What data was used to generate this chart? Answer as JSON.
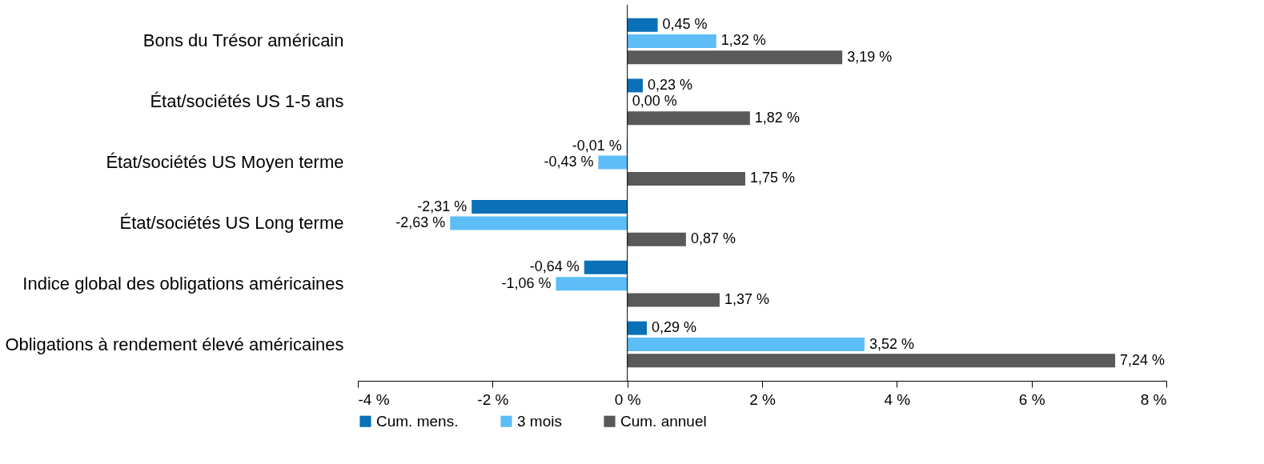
{
  "chart_data": {
    "type": "bar",
    "orientation": "horizontal",
    "categories": [
      "Bons du Trésor américain",
      "État/sociétés US 1-5 ans",
      "État/sociétés US Moyen terme",
      "État/sociétés US Long terme",
      "Indice global des obligations américaines",
      "Obligations à rendement élevé américaines"
    ],
    "series": [
      {
        "name": "Cum. mens.",
        "color": "#0a70b8",
        "values": [
          0.45,
          0.23,
          -0.01,
          -2.31,
          -0.64,
          0.29
        ],
        "value_labels": [
          "0,45 %",
          "0,23 %",
          "-0,01 %",
          "-2,31 %",
          "-0,64 %",
          "0,29 %"
        ]
      },
      {
        "name": "3 mois",
        "color": "#5cbdf7",
        "values": [
          1.32,
          0.0,
          -0.43,
          -2.63,
          -1.06,
          3.52
        ],
        "value_labels": [
          "1,32 %",
          "0,00 %",
          "-0,43 %",
          "-2,63 %",
          "-1,06 %",
          "3,52 %"
        ]
      },
      {
        "name": "Cum. annuel",
        "color": "#595959",
        "values": [
          3.19,
          1.82,
          1.75,
          0.87,
          1.37,
          7.24
        ],
        "value_labels": [
          "3,19 %",
          "1,82 %",
          "1,75 %",
          "0,87 %",
          "1,37 %",
          "7,24 %"
        ]
      }
    ],
    "xlim": [
      -4,
      8
    ],
    "xticks": [
      {
        "value": -4,
        "label": "-4 %"
      },
      {
        "value": -2,
        "label": "-2 %"
      },
      {
        "value": 0,
        "label": "0 %"
      },
      {
        "value": 2,
        "label": "2 %"
      },
      {
        "value": 4,
        "label": "4 %"
      },
      {
        "value": 6,
        "label": "6 %"
      },
      {
        "value": 8,
        "label": "8 %"
      }
    ],
    "legend": "bottom left"
  }
}
